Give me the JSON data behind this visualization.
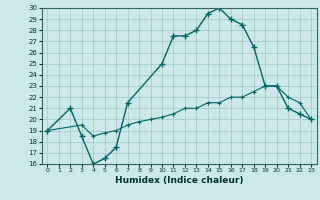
{
  "title": "",
  "xlabel": "Humidex (Indice chaleur)",
  "bg_color": "#cce8e8",
  "grid_color": "#aacccc",
  "line_color": "#006666",
  "ylim": [
    16,
    30
  ],
  "xlim": [
    -0.5,
    23.5
  ],
  "yticks": [
    16,
    17,
    18,
    19,
    20,
    21,
    22,
    23,
    24,
    25,
    26,
    27,
    28,
    29,
    30
  ],
  "xticks": [
    0,
    1,
    2,
    3,
    4,
    5,
    6,
    7,
    8,
    9,
    10,
    11,
    12,
    13,
    14,
    15,
    16,
    17,
    18,
    19,
    20,
    21,
    22,
    23
  ],
  "curve1_x": [
    0,
    2,
    3,
    4,
    5,
    6,
    7,
    10,
    11,
    12,
    13,
    14,
    15,
    16,
    17,
    18,
    19,
    20,
    21,
    22,
    23
  ],
  "curve1_y": [
    19,
    21,
    18.5,
    16,
    16.5,
    17.5,
    21.5,
    25,
    27.5,
    27.5,
    28,
    29.5,
    30,
    29,
    28.5,
    26.5,
    23,
    23,
    21,
    20.5,
    20
  ],
  "curve2_x": [
    0,
    3,
    4,
    5,
    6,
    7,
    8,
    9,
    10,
    11,
    12,
    13,
    14,
    15,
    16,
    17,
    18,
    19,
    20,
    21,
    22,
    23
  ],
  "curve2_y": [
    19,
    19.5,
    18.5,
    18.8,
    19,
    19.5,
    19.8,
    20,
    20.2,
    20.5,
    21,
    21,
    21.5,
    21.5,
    22,
    22,
    22.5,
    23,
    23,
    22,
    21.5,
    20
  ]
}
